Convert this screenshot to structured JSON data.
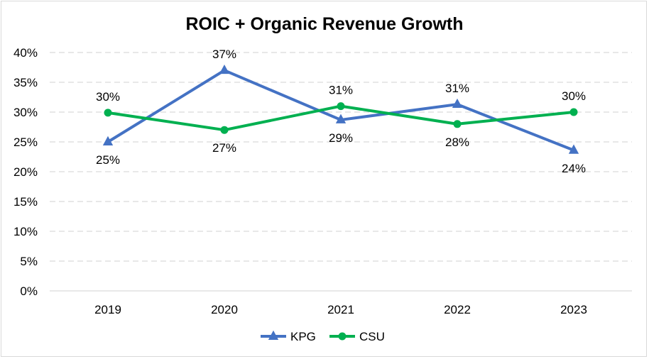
{
  "chart_data": {
    "type": "line",
    "title": "ROIC + Organic Revenue Growth",
    "categories": [
      "2019",
      "2020",
      "2021",
      "2022",
      "2023"
    ],
    "y_ticks": [
      "0%",
      "5%",
      "10%",
      "15%",
      "20%",
      "25%",
      "30%",
      "35%",
      "40%"
    ],
    "ylim": [
      0,
      40
    ],
    "grid": true,
    "legend_position": "bottom",
    "series": [
      {
        "name": "KPG",
        "values": [
          25,
          37,
          28.7,
          31.3,
          23.6
        ],
        "labels": [
          "25%",
          "37%",
          "29%",
          "31%",
          "24%"
        ],
        "color": "#4472C4",
        "marker": "triangle"
      },
      {
        "name": "CSU",
        "values": [
          29.9,
          27,
          31,
          28,
          30
        ],
        "labels": [
          "30%",
          "27%",
          "31%",
          "28%",
          "30%"
        ],
        "color": "#00B050",
        "marker": "circle"
      }
    ]
  }
}
